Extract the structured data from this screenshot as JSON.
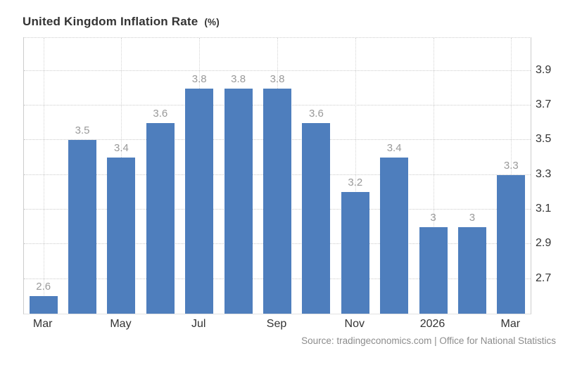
{
  "title": {
    "main": "United Kingdom Inflation Rate",
    "unit": "(%)"
  },
  "source": "Source: tradingeconomics.com | Office for National Statistics",
  "chart_data": {
    "type": "bar",
    "title": "United Kingdom Inflation Rate (%)",
    "values": [
      2.6,
      3.5,
      3.4,
      3.6,
      3.8,
      3.8,
      3.8,
      3.6,
      3.2,
      3.4,
      3,
      3,
      3.3
    ],
    "bar_labels": [
      "2.6",
      "3.5",
      "3.4",
      "3.6",
      "3.8",
      "3.8",
      "3.8",
      "3.6",
      "3.2",
      "3.4",
      "3",
      "3",
      "3.3"
    ],
    "x_ticks": [
      {
        "label": "Mar",
        "bar_index": 0
      },
      {
        "label": "May",
        "bar_index": 2
      },
      {
        "label": "Jul",
        "bar_index": 4
      },
      {
        "label": "Sep",
        "bar_index": 6
      },
      {
        "label": "Nov",
        "bar_index": 8
      },
      {
        "label": "2026",
        "bar_index": 10
      },
      {
        "label": "Mar",
        "bar_index": 12
      }
    ],
    "y_tick_labels": [
      "2.7",
      "2.9",
      "3.1",
      "3.3",
      "3.5",
      "3.7",
      "3.9"
    ],
    "ylim": [
      2.5,
      4.09
    ],
    "grid": true,
    "legend": false,
    "bar_color": "#4e7ebd",
    "value_label_color": "#999999",
    "axis_label_color": "#333333",
    "gridline_color": "#cccccc"
  }
}
